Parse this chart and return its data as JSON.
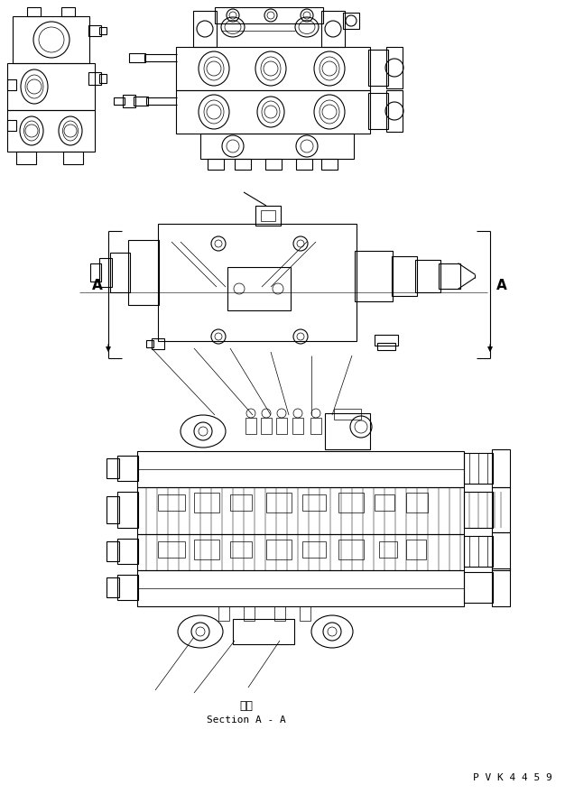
{
  "background_color": "#ffffff",
  "line_color": "#000000",
  "pvk_label": "P V K 4 4 5 9",
  "section_label_japanese": "断面",
  "section_label_english": "Section A - A",
  "A_label": "A",
  "fig_width": 6.26,
  "fig_height": 8.8,
  "dpi": 100
}
